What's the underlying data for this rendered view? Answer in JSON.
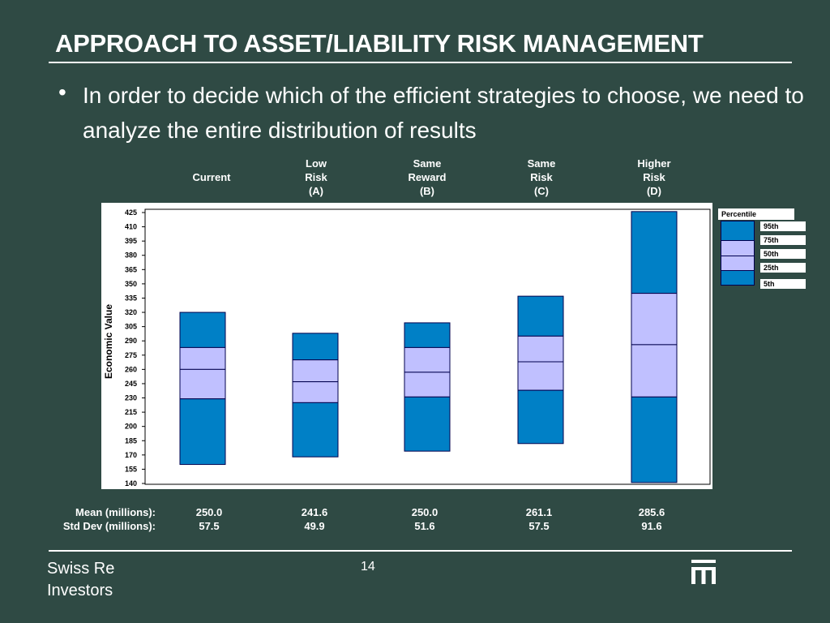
{
  "slide": {
    "title": "APPROACH TO ASSET/LIABILITY RISK MANAGEMENT",
    "bullet": "In order to decide which of the efficient strategies to choose, we need to analyze the entire distribution of results",
    "footer_line1": "Swiss Re",
    "footer_line2": "Investors",
    "page_number": "14"
  },
  "colors": {
    "background": "#2f4a44",
    "outer_band": "#0080c6",
    "inner_band": "#c0c0ff",
    "box_border": "#00004d"
  },
  "columns": [
    {
      "line1": "",
      "line2": "Current",
      "line3": ""
    },
    {
      "line1": "Low",
      "line2": "Risk",
      "line3": "(A)"
    },
    {
      "line1": "Same",
      "line2": "Reward",
      "line3": "(B)"
    },
    {
      "line1": "Same",
      "line2": "Risk",
      "line3": "(C)"
    },
    {
      "line1": "Higher",
      "line2": "Risk",
      "line3": "(D)"
    }
  ],
  "legend": {
    "title": "Percentile",
    "labels": [
      "95th",
      "75th",
      "50th",
      "25th",
      "5th"
    ]
  },
  "stats": {
    "mean_label": "Mean (millions):",
    "std_label": "Std Dev (millions):",
    "mean": [
      "250.0",
      "241.6",
      "250.0",
      "261.1",
      "285.6"
    ],
    "std": [
      "57.5",
      "49.9",
      "51.6",
      "57.5",
      "91.6"
    ]
  },
  "chart_data": {
    "type": "box",
    "ylabel": "Economic Value",
    "ylim": [
      140,
      425
    ],
    "yticks": [
      140,
      155,
      170,
      185,
      200,
      215,
      230,
      245,
      260,
      275,
      290,
      305,
      320,
      335,
      350,
      365,
      380,
      395,
      410,
      425
    ],
    "categories": [
      "Current",
      "Low Risk (A)",
      "Same Reward (B)",
      "Same Risk (C)",
      "Higher Risk (D)"
    ],
    "percentiles": [
      {
        "p5": 160,
        "p25": 229,
        "p50": 260,
        "p75": 283,
        "p95": 320
      },
      {
        "p5": 168,
        "p25": 225,
        "p50": 247,
        "p75": 270,
        "p95": 298
      },
      {
        "p5": 174,
        "p25": 231,
        "p50": 257,
        "p75": 283,
        "p95": 309
      },
      {
        "p5": 182,
        "p25": 238,
        "p50": 268,
        "p75": 295,
        "p95": 337
      },
      {
        "p5": 141,
        "p25": 231,
        "p50": 286,
        "p75": 340,
        "p95": 426
      }
    ]
  }
}
